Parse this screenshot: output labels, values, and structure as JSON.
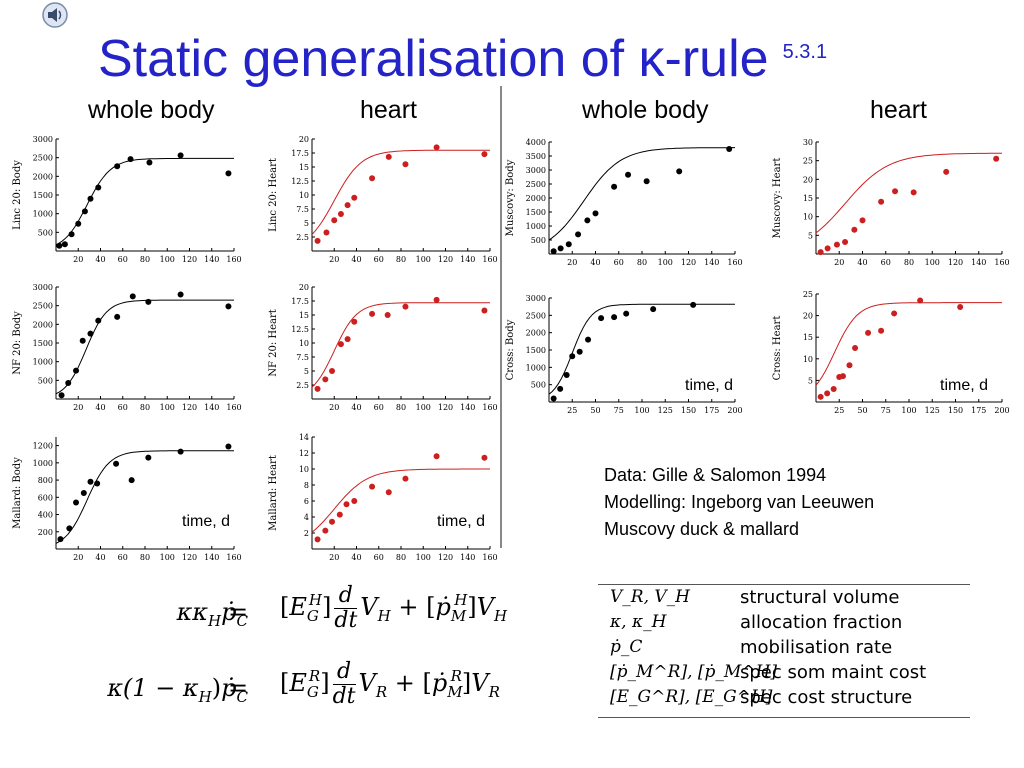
{
  "title": "Static generalisation of κ-rule",
  "section_number": "5.3.1",
  "column_headers": [
    "whole body",
    "heart",
    "whole body",
    "heart"
  ],
  "time_label": "time, d",
  "credits": [
    "Data: Gille & Salomon 1994",
    "Modelling: Ingeborg van Leeuwen",
    "Muscovy duck & mallard"
  ],
  "equations": {
    "eq1_lhs": "κκ",
    "eq2_lhs": "κ(1 − κ",
    "equals": "="
  },
  "legend": [
    {
      "symbol": "V_R, V_H",
      "description": "structural volume"
    },
    {
      "symbol": "κ, κ_H",
      "description": "allocation fraction"
    },
    {
      "symbol": "ṗ_C",
      "description": "mobilisation rate"
    },
    {
      "symbol": "[ṗ_M^R], [ṗ_M^H]",
      "description": "spec som maint cost"
    },
    {
      "symbol": "[E_G^R], [E_G^H]",
      "description": "spec cost structure"
    }
  ],
  "colors": {
    "title": "#2323c8",
    "body_series": "#000000",
    "heart_series": "#cc1f1f"
  },
  "chart_data": [
    {
      "type": "scatter",
      "ylabel": "Linc 20: Body",
      "xlim": [
        0,
        160
      ],
      "ylim": [
        0,
        3000
      ],
      "xticks": [
        20,
        40,
        60,
        80,
        100,
        120,
        140,
        160
      ],
      "yticks": [
        500,
        1000,
        1500,
        2000,
        2500,
        3000
      ],
      "points": [
        [
          3,
          140
        ],
        [
          8,
          180
        ],
        [
          14,
          450
        ],
        [
          20,
          730
        ],
        [
          26,
          1060
        ],
        [
          31,
          1400
        ],
        [
          38,
          1700
        ],
        [
          55,
          2270
        ],
        [
          67,
          2460
        ],
        [
          84,
          2370
        ],
        [
          112,
          2560
        ],
        [
          155,
          2080
        ]
      ],
      "fit": {
        "Ymax": 2480,
        "k": 0.0236,
        "x0": 28
      }
    },
    {
      "type": "scatter",
      "ylabel": "Linc 20: Heart",
      "xlim": [
        0,
        160
      ],
      "ylim": [
        0,
        20
      ],
      "xticks": [
        20,
        40,
        60,
        80,
        100,
        120,
        140,
        160
      ],
      "yticks": [
        2.5,
        5,
        7.5,
        10,
        12.5,
        15,
        17.5,
        20
      ],
      "points": [
        [
          5,
          1.8
        ],
        [
          13,
          3.3
        ],
        [
          20,
          5.5
        ],
        [
          26,
          6.6
        ],
        [
          32,
          8.2
        ],
        [
          38,
          9.5
        ],
        [
          54,
          13
        ],
        [
          69,
          16.8
        ],
        [
          84,
          15.5
        ],
        [
          112,
          18.5
        ],
        [
          155,
          17.3
        ]
      ],
      "fit": {
        "Ymax": 18,
        "k": 0.0203,
        "x0": 20
      }
    },
    {
      "type": "scatter",
      "ylabel": "NF 20: Body",
      "xlim": [
        0,
        160
      ],
      "ylim": [
        0,
        3000
      ],
      "xticks": [
        20,
        40,
        60,
        80,
        100,
        120,
        140,
        160
      ],
      "yticks": [
        500,
        1000,
        1500,
        2000,
        2500,
        3000
      ],
      "points": [
        [
          5,
          100
        ],
        [
          11,
          430
        ],
        [
          18,
          760
        ],
        [
          24,
          1560
        ],
        [
          31,
          1750
        ],
        [
          38,
          2100
        ],
        [
          55,
          2200
        ],
        [
          69,
          2750
        ],
        [
          83,
          2600
        ],
        [
          112,
          2800
        ],
        [
          155,
          2480
        ]
      ],
      "fit": {
        "Ymax": 2650,
        "k": 0.0268,
        "x0": 27
      }
    },
    {
      "type": "scatter",
      "ylabel": "NF 20: Heart",
      "xlim": [
        0,
        160
      ],
      "ylim": [
        0,
        20
      ],
      "xticks": [
        20,
        40,
        60,
        80,
        100,
        120,
        140,
        160
      ],
      "yticks": [
        2.5,
        5,
        7.5,
        10,
        12.5,
        15,
        17.5,
        20
      ],
      "points": [
        [
          5,
          1.8
        ],
        [
          12,
          3.5
        ],
        [
          18,
          5
        ],
        [
          26,
          9.8
        ],
        [
          32,
          10.7
        ],
        [
          38,
          13.8
        ],
        [
          54,
          15.2
        ],
        [
          68,
          15
        ],
        [
          84,
          16.5
        ],
        [
          112,
          17.7
        ],
        [
          155,
          15.8
        ]
      ],
      "fit": {
        "Ymax": 17.2,
        "k": 0.0246,
        "x0": 20
      }
    },
    {
      "type": "scatter",
      "ylabel": "Mallard: Body",
      "xlim": [
        0,
        160
      ],
      "ylim": [
        0,
        1300
      ],
      "xticks": [
        20,
        40,
        60,
        80,
        100,
        120,
        140,
        160
      ],
      "yticks": [
        200,
        400,
        600,
        800,
        1000,
        1200
      ],
      "points": [
        [
          4,
          115
        ],
        [
          12,
          240
        ],
        [
          18,
          540
        ],
        [
          25,
          650
        ],
        [
          31,
          780
        ],
        [
          37,
          760
        ],
        [
          54,
          990
        ],
        [
          68,
          800
        ],
        [
          83,
          1060
        ],
        [
          112,
          1130
        ],
        [
          155,
          1190
        ]
      ],
      "fit": {
        "Ymax": 1140,
        "k": 0.025,
        "x0": 28
      }
    },
    {
      "type": "scatter",
      "ylabel": "Mallard: Heart",
      "xlim": [
        0,
        160
      ],
      "ylim": [
        0,
        14
      ],
      "xticks": [
        20,
        40,
        60,
        80,
        100,
        120,
        140,
        160
      ],
      "yticks": [
        2,
        4,
        6,
        8,
        10,
        12,
        14
      ],
      "points": [
        [
          5,
          1.2
        ],
        [
          12,
          2.3
        ],
        [
          18,
          3.4
        ],
        [
          25,
          4.3
        ],
        [
          31,
          5.6
        ],
        [
          38,
          6
        ],
        [
          54,
          7.8
        ],
        [
          69,
          7.1
        ],
        [
          84,
          8.8
        ],
        [
          112,
          11.6
        ],
        [
          155,
          11.4
        ]
      ],
      "fit": {
        "Ymax": 10,
        "k": 0.0166,
        "x0": 20
      }
    },
    {
      "type": "scatter",
      "ylabel": "Muscovy: Body",
      "xlim": [
        0,
        160
      ],
      "ylim": [
        0,
        4000
      ],
      "xticks": [
        20,
        40,
        60,
        80,
        100,
        120,
        140,
        160
      ],
      "yticks": [
        500,
        1000,
        1500,
        2000,
        2500,
        3000,
        3500,
        4000
      ],
      "points": [
        [
          4,
          100
        ],
        [
          10,
          200
        ],
        [
          17,
          350
        ],
        [
          25,
          700
        ],
        [
          33,
          1200
        ],
        [
          40,
          1450
        ],
        [
          56,
          2400
        ],
        [
          68,
          2830
        ],
        [
          84,
          2600
        ],
        [
          112,
          2950
        ],
        [
          155,
          3750
        ]
      ],
      "fit": {
        "Ymax": 3800,
        "k": 0.0157,
        "x0": 30
      }
    },
    {
      "type": "scatter",
      "ylabel": "Muscovy: Heart",
      "xlim": [
        0,
        160
      ],
      "ylim": [
        0,
        30
      ],
      "xticks": [
        20,
        40,
        60,
        80,
        100,
        120,
        140,
        160
      ],
      "yticks": [
        5,
        10,
        15,
        20,
        25,
        30
      ],
      "points": [
        [
          4,
          0.5
        ],
        [
          10,
          1.5
        ],
        [
          18,
          2.5
        ],
        [
          25,
          3.2
        ],
        [
          33,
          6.5
        ],
        [
          40,
          9
        ],
        [
          56,
          14
        ],
        [
          68,
          16.8
        ],
        [
          84,
          16.5
        ],
        [
          112,
          22
        ],
        [
          155,
          25.5
        ]
      ],
      "fit": {
        "Ymax": 27,
        "k": 0.0133,
        "x0": 25
      }
    },
    {
      "type": "scatter",
      "ylabel": "Cross: Body",
      "xlim": [
        0,
        200
      ],
      "ylim": [
        0,
        3000
      ],
      "xticks": [
        25,
        50,
        75,
        100,
        125,
        150,
        175,
        200
      ],
      "yticks": [
        500,
        1000,
        1500,
        2000,
        2500,
        3000
      ],
      "points": [
        [
          5,
          100
        ],
        [
          12,
          380
        ],
        [
          19,
          780
        ],
        [
          25,
          1320
        ],
        [
          33,
          1450
        ],
        [
          42,
          1800
        ],
        [
          56,
          2420
        ],
        [
          70,
          2450
        ],
        [
          83,
          2550
        ],
        [
          112,
          2680
        ],
        [
          155,
          2800
        ]
      ],
      "fit": {
        "Ymax": 2820,
        "k": 0.0246,
        "x0": 25
      }
    },
    {
      "type": "scatter",
      "ylabel": "Cross: Heart",
      "xlim": [
        0,
        200
      ],
      "ylim": [
        0,
        25
      ],
      "xticks": [
        25,
        50,
        75,
        100,
        125,
        150,
        175,
        200
      ],
      "yticks": [
        5,
        10,
        15,
        20,
        25
      ],
      "points": [
        [
          5,
          1.2
        ],
        [
          12,
          2
        ],
        [
          19,
          3
        ],
        [
          25,
          5.8
        ],
        [
          29,
          6
        ],
        [
          36,
          8.5
        ],
        [
          42,
          12.5
        ],
        [
          56,
          16
        ],
        [
          70,
          16.5
        ],
        [
          84,
          20.5
        ],
        [
          112,
          23.5
        ],
        [
          155,
          22
        ]
      ],
      "fit": {
        "Ymax": 23,
        "k": 0.02,
        "x0": 20
      }
    }
  ]
}
